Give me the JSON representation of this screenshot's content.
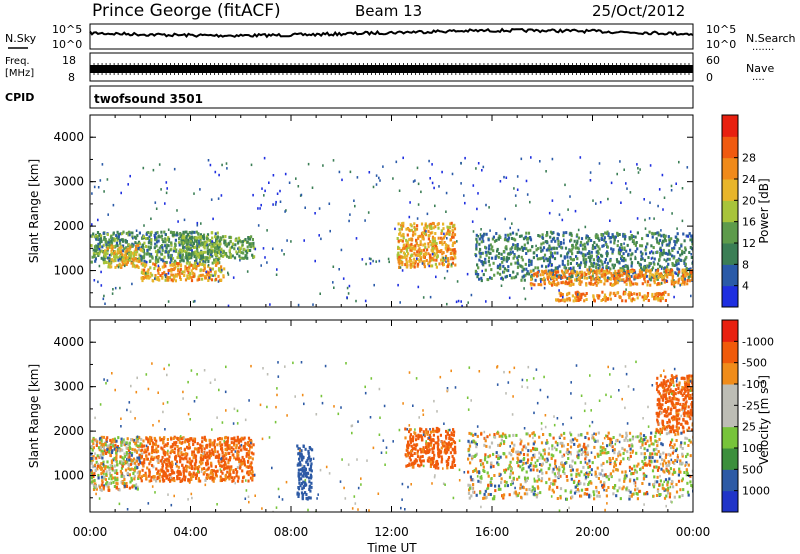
{
  "header": {
    "station": "Prince George (fitACF)",
    "beam": "Beam 13",
    "date": "25/Oct/2012"
  },
  "noise_panel": {
    "left_label": "N.Sky",
    "left_ticks": [
      "10^5",
      "10^0"
    ],
    "right_ticks": [
      "10^5",
      "10^0"
    ],
    "right_label": "N.Search",
    "right_dots": "......."
  },
  "freq_panel": {
    "left_label_1": "Freq.",
    "left_label_2": "[MHz]",
    "left_ticks": [
      "18",
      "8"
    ],
    "right_ticks": [
      "60",
      "0"
    ],
    "right_label": "Nave",
    "right_dots": "...."
  },
  "cpid_panel": {
    "label": "CPID",
    "program": "twofsound 3501"
  },
  "chart_data": [
    {
      "type": "heatmap",
      "title": "",
      "quantity": "Power",
      "ylabel": "Slant Range [km]",
      "xlabel": "",
      "x_ticks": [
        "00:00",
        "04:00",
        "08:00",
        "12:00",
        "16:00",
        "20:00",
        "00:00"
      ],
      "y_ticks": [
        "1000",
        "2000",
        "3000",
        "4000"
      ],
      "ylim": [
        180,
        4500
      ],
      "colorbar_label": "Power [dB]",
      "colorbar_ticks": [
        "4",
        "8",
        "12",
        "16",
        "20",
        "24",
        "28"
      ],
      "colorbar_colors": [
        "#1f2fe0",
        "#2a5aa8",
        "#3b7e55",
        "#5e9b4b",
        "#a8c43a",
        "#e8b52a",
        "#f08a1a",
        "#f05a10",
        "#e82010"
      ],
      "features": [
        {
          "x_hours": [
            0.0,
            5.2
          ],
          "range_km": [
            1200,
            1900
          ],
          "level_db": 12
        },
        {
          "x_hours": [
            0.5,
            2.0
          ],
          "range_km": [
            1100,
            1600
          ],
          "level_db": 22
        },
        {
          "x_hours": [
            2.0,
            5.3
          ],
          "range_km": [
            800,
            1200
          ],
          "level_db": 24
        },
        {
          "x_hours": [
            3.6,
            6.5
          ],
          "range_km": [
            1300,
            1800
          ],
          "level_db": 14
        },
        {
          "x_hours": [
            12.2,
            14.5
          ],
          "range_km": [
            1100,
            2100
          ],
          "level_db": 24
        },
        {
          "x_hours": [
            15.3,
            24.0
          ],
          "range_km": [
            800,
            1900
          ],
          "level_db": 10
        },
        {
          "x_hours": [
            17.5,
            24.0
          ],
          "range_km": [
            700,
            1050
          ],
          "level_db": 26
        },
        {
          "x_hours": [
            18.5,
            23.0
          ],
          "range_km": [
            350,
            550
          ],
          "level_db": 26
        }
      ]
    },
    {
      "type": "heatmap",
      "title": "",
      "quantity": "Velocity",
      "ylabel": "Slant Range [km]",
      "xlabel": "Time UT",
      "x_ticks": [
        "00:00",
        "04:00",
        "08:00",
        "12:00",
        "16:00",
        "20:00",
        "00:00"
      ],
      "y_ticks": [
        "1000",
        "2000",
        "3000",
        "4000"
      ],
      "ylim": [
        180,
        4500
      ],
      "colorbar_label": "Velocity [m s",
      "colorbar_label_exp": "-1",
      "colorbar_label_end": "]",
      "colorbar_ticks": [
        "1000",
        "500",
        "100",
        "25",
        "-25",
        "-100",
        "-500",
        "-1000"
      ],
      "colorbar_colors": [
        "#2034c8",
        "#2d5aa5",
        "#3c8f3c",
        "#77c43a",
        "#bdbdb5",
        "#bdbdb5",
        "#f08c1a",
        "#f05a0a",
        "#e82010"
      ],
      "features": [
        {
          "x_hours": [
            0.0,
            2.0
          ],
          "range_km": [
            700,
            1900
          ],
          "velocity_ms": 0
        },
        {
          "x_hours": [
            2.0,
            6.5
          ],
          "range_km": [
            900,
            1900
          ],
          "velocity_ms": -150
        },
        {
          "x_hours": [
            8.2,
            8.8
          ],
          "range_km": [
            500,
            1700
          ],
          "velocity_ms": 300
        },
        {
          "x_hours": [
            12.5,
            14.5
          ],
          "range_km": [
            1200,
            2100
          ],
          "velocity_ms": -200
        },
        {
          "x_hours": [
            15.0,
            24.0
          ],
          "range_km": [
            500,
            2000
          ],
          "velocity_ms": 0
        },
        {
          "x_hours": [
            22.5,
            24.0
          ],
          "range_km": [
            2000,
            3300
          ],
          "velocity_ms": -200
        }
      ]
    }
  ]
}
